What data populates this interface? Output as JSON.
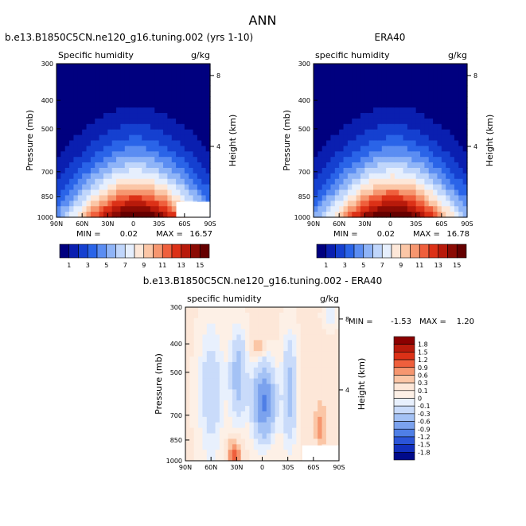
{
  "figure": {
    "title": "ANN"
  },
  "chart_data": [
    {
      "type": "heatmap",
      "title": "b.e13.B1850C5CN.ne120_g16.tuning.002 (yrs 1-10)",
      "subtitle_left": "Specific humidity",
      "subtitle_right": "g/kg",
      "xlabel": "",
      "ylabel": "Pressure (mb)",
      "ylabel_right": "Height (km)",
      "x_ticks": [
        "90N",
        "60N",
        "30N",
        "0",
        "30S",
        "60S",
        "90S"
      ],
      "y_ticks": [
        "300",
        "400",
        "500",
        "700",
        "850",
        "1000"
      ],
      "y2_ticks": [
        "8",
        "4"
      ],
      "min_label": "MIN =",
      "min": "0.02",
      "max_label": "MAX =",
      "max": "16.57",
      "peak": 16.57,
      "colorbar_labels": [
        "1",
        "3",
        "5",
        "7",
        "9",
        "11",
        "13",
        "15"
      ]
    },
    {
      "type": "heatmap",
      "title": "ERA40",
      "subtitle_left": "specific humidity",
      "subtitle_right": "g/kg",
      "xlabel": "",
      "ylabel": "Pressure (mb)",
      "ylabel_right": "Height (km)",
      "x_ticks": [
        "90N",
        "60N",
        "30N",
        "0",
        "30S",
        "60S",
        "90S"
      ],
      "y_ticks": [
        "300",
        "400",
        "500",
        "700",
        "850",
        "1000"
      ],
      "y2_ticks": [
        "8",
        "4"
      ],
      "min_label": "MIN =",
      "min": "0.02",
      "max_label": "MAX =",
      "max": "16.78",
      "peak": 16.78,
      "colorbar_labels": [
        "1",
        "3",
        "5",
        "7",
        "9",
        "11",
        "13",
        "15"
      ]
    },
    {
      "type": "heatmap",
      "title": "b.e13.B1850C5CN.ne120_g16.tuning.002 - ERA40",
      "subtitle_left": "specific humidity",
      "subtitle_right": "g/kg",
      "xlabel": "",
      "ylabel": "Pressure (mb)",
      "ylabel_right": "Height (km)",
      "x_ticks": [
        "90N",
        "60N",
        "30N",
        "0",
        "30S",
        "60S",
        "90S"
      ],
      "y_ticks": [
        "300",
        "400",
        "500",
        "700",
        "850",
        "1000"
      ],
      "y2_ticks": [
        "8",
        "4"
      ],
      "min_label": "MIN =",
      "min": "-1.53",
      "max_label": "MAX =",
      "max": "1.20",
      "colorbar_labels": [
        "1.8",
        "1.5",
        "1.2",
        "0.9",
        "0.6",
        "0.3",
        "0.1",
        "0",
        "-0.1",
        "-0.3",
        "-0.6",
        "-0.9",
        "-1.2",
        "-1.5",
        "-1.8"
      ]
    }
  ],
  "colors": {
    "abs_scale": [
      "#00007f",
      "#0a1fb0",
      "#1540d0",
      "#2a64e8",
      "#5b8df2",
      "#8fb4f7",
      "#c0d6fb",
      "#e6effd",
      "#fde7d8",
      "#fbc6a6",
      "#f6966f",
      "#ef5f3c",
      "#dc3117",
      "#b81a0b",
      "#8b0b04",
      "#650000"
    ],
    "diff_scale": [
      "#8b0000",
      "#b81a0b",
      "#dc3117",
      "#ef5f3c",
      "#f6966f",
      "#fbc6a6",
      "#fde7d8",
      "#fdf0e6",
      "#e8f0fd",
      "#c9dbfa",
      "#a4c2f5",
      "#7ba2ee",
      "#4f7fe6",
      "#2b55d8",
      "#1230bd",
      "#000a8a"
    ]
  }
}
